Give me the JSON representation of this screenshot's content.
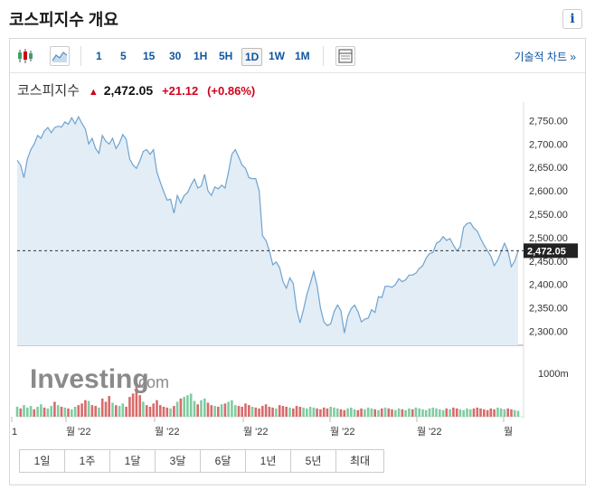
{
  "title": "코스피지수 개요",
  "info_icon_text": "i",
  "toolbar": {
    "timeframes": [
      "1",
      "5",
      "15",
      "30",
      "1H",
      "5H",
      "1D",
      "1W",
      "1M"
    ],
    "active_timeframe": "1D",
    "tech_chart_link": "기술적 차트 »"
  },
  "quote": {
    "name": "코스피지수",
    "price": "2,472.05",
    "change": "+21.12",
    "change_pct": "(+0.86%)"
  },
  "watermark": {
    "brand": "Investing",
    "suffix": ".com"
  },
  "ranges": [
    "1일",
    "1주",
    "1달",
    "3달",
    "6달",
    "1년",
    "5년",
    "최대"
  ],
  "colors": {
    "line": "#6fa3cf",
    "area": "#e3edf6",
    "up_volume": "#7fcca1",
    "down_volume": "#d96a6a",
    "price_tag": "#222222",
    "negative": "#d0021b"
  },
  "chart_data": {
    "type": "area",
    "y_ticks": [
      "2,750.00",
      "2,700.00",
      "2,650.00",
      "2,600.00",
      "2,550.00",
      "2,500.00",
      "2,450.00",
      "2,400.00",
      "2,350.00",
      "2,300.00"
    ],
    "ylim": [
      2270,
      2770
    ],
    "x_labels": [
      "1",
      "월 '22",
      "월 '22",
      "월 '22",
      "월 '22",
      "월 '22",
      "월"
    ],
    "last_value": 2472.05,
    "last_label": "2,472.05",
    "volume_label": "1000m",
    "values": [
      2665,
      2655,
      2628,
      2668,
      2688,
      2700,
      2718,
      2712,
      2728,
      2735,
      2724,
      2735,
      2738,
      2736,
      2747,
      2742,
      2756,
      2743,
      2758,
      2744,
      2732,
      2700,
      2712,
      2690,
      2680,
      2718,
      2706,
      2700,
      2712,
      2690,
      2702,
      2720,
      2710,
      2668,
      2655,
      2648,
      2664,
      2684,
      2688,
      2678,
      2688,
      2640,
      2618,
      2598,
      2580,
      2582,
      2552,
      2590,
      2574,
      2590,
      2596,
      2612,
      2625,
      2606,
      2610,
      2635,
      2600,
      2590,
      2608,
      2604,
      2612,
      2606,
      2640,
      2678,
      2688,
      2672,
      2655,
      2648,
      2628,
      2626,
      2626,
      2600,
      2504,
      2494,
      2472,
      2442,
      2448,
      2436,
      2406,
      2392,
      2414,
      2402,
      2348,
      2318,
      2346,
      2378,
      2402,
      2428,
      2398,
      2350,
      2320,
      2312,
      2316,
      2342,
      2356,
      2344,
      2296,
      2332,
      2348,
      2356,
      2342,
      2320,
      2326,
      2328,
      2346,
      2340,
      2374,
      2372,
      2396,
      2396,
      2394,
      2400,
      2412,
      2406,
      2410,
      2420,
      2420,
      2424,
      2434,
      2440,
      2456,
      2466,
      2468,
      2488,
      2492,
      2502,
      2494,
      2498,
      2484,
      2472,
      2480,
      2522,
      2530,
      2532,
      2520,
      2514,
      2498,
      2484,
      2472,
      2460,
      2440,
      2452,
      2470,
      2488,
      2472,
      2438,
      2450,
      2472
    ],
    "volumes": [
      12,
      10,
      14,
      11,
      13,
      9,
      12,
      15,
      11,
      10,
      13,
      18,
      14,
      12,
      11,
      10,
      9,
      12,
      14,
      16,
      20,
      19,
      14,
      13,
      11,
      22,
      18,
      25,
      17,
      14,
      13,
      16,
      12,
      24,
      28,
      35,
      26,
      18,
      14,
      12,
      16,
      20,
      14,
      12,
      11,
      10,
      13,
      18,
      22,
      24,
      26,
      28,
      19,
      15,
      20,
      22,
      17,
      14,
      13,
      12,
      15,
      16,
      18,
      20,
      14,
      13,
      12,
      16,
      14,
      12,
      11,
      10,
      13,
      15,
      12,
      11,
      10,
      14,
      13,
      12,
      11,
      10,
      13,
      12,
      11,
      10,
      12,
      11,
      10,
      9,
      11,
      10,
      12,
      11,
      10,
      9,
      8,
      10,
      11,
      9,
      8,
      10,
      9,
      11,
      10,
      9,
      8,
      10,
      11,
      10,
      9,
      8,
      10,
      9,
      8,
      10,
      9,
      11,
      10,
      9,
      8,
      10,
      11,
      10,
      9,
      8,
      10,
      9,
      11,
      10,
      9,
      8,
      10,
      9,
      10,
      11,
      10,
      9,
      8,
      10,
      9,
      11,
      10,
      9,
      10,
      9,
      8,
      7
    ],
    "volume_up": [
      true,
      false,
      true,
      true,
      true,
      false,
      true,
      true,
      false,
      true,
      true,
      false,
      true,
      false,
      true,
      false,
      true,
      true,
      false,
      false,
      false,
      true,
      false,
      false,
      true,
      false,
      false,
      false,
      true,
      false,
      true,
      true,
      false,
      false,
      false,
      false,
      false,
      true,
      false,
      false,
      false,
      false,
      false,
      false,
      false,
      true,
      false,
      true,
      false,
      true,
      true,
      true,
      true,
      false,
      true,
      true,
      false,
      false,
      true,
      false,
      true,
      false,
      true,
      true,
      true,
      false,
      false,
      false,
      false,
      true,
      false,
      false,
      false,
      false,
      false,
      false,
      true,
      false,
      false,
      false,
      true,
      false,
      false,
      false,
      true,
      true,
      true,
      true,
      false,
      false,
      false,
      false,
      true,
      true,
      true,
      false,
      false,
      true,
      true,
      true,
      false,
      false,
      true,
      true,
      true,
      false,
      true,
      false,
      true,
      false,
      false,
      true,
      true,
      false,
      true,
      true,
      false,
      true,
      true,
      true,
      true,
      true,
      true,
      true,
      true,
      true,
      false,
      true,
      false,
      false,
      true,
      true,
      true,
      true,
      false,
      false,
      false,
      false,
      false,
      false,
      false,
      true,
      true,
      true,
      false,
      false,
      true,
      true
    ]
  }
}
